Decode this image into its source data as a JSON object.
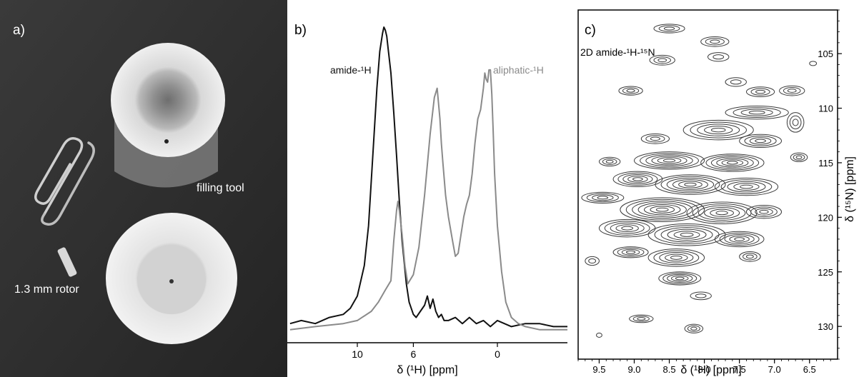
{
  "panels": {
    "a": {
      "label": "a)",
      "annotations": {
        "filling_tool": "filling tool",
        "rotor": "1.3 mm rotor"
      }
    },
    "b": {
      "label": "b)",
      "xlabel": "δ (¹H) [ppm]"
    },
    "c": {
      "label": "c)",
      "annotation": "2D amide-¹H-¹⁵N",
      "xlabel": "δ (¹H) [ppm]",
      "ylabel": "δ (¹⁵N) [ppm]"
    }
  },
  "colors": {
    "amide": "#111111",
    "aliphatic": "#8a8a8a",
    "contour": "#3a3a3a",
    "photo_bg": "#2c2c2c"
  },
  "chart_data": [
    {
      "type": "line",
      "panel": "b",
      "xlabel": "δ (¹H) [ppm]",
      "ylabel": "",
      "x_ticks": [
        10,
        6,
        0
      ],
      "xlim": [
        15,
        -5
      ],
      "x_reversed": true,
      "ylim": [
        0,
        1
      ],
      "series": [
        {
          "name": "amide-¹H",
          "x": [
            14.8,
            14,
            13,
            12,
            11,
            10.5,
            10,
            9.5,
            9.2,
            9,
            8.8,
            8.6,
            8.4,
            8.2,
            8.1,
            8,
            7.9,
            7.8,
            7.6,
            7.4,
            7.2,
            7,
            6.8,
            6.5,
            6.3,
            6,
            5.8,
            5.5,
            5.2,
            5,
            4.8,
            4.6,
            4.4,
            4.2,
            4,
            3.8,
            3.5,
            3,
            2.5,
            2,
            1.5,
            1,
            0.5,
            0,
            -1,
            -2,
            -3,
            -4,
            -5
          ],
          "y": [
            0.03,
            0.04,
            0.03,
            0.05,
            0.06,
            0.08,
            0.12,
            0.22,
            0.35,
            0.5,
            0.65,
            0.8,
            0.92,
            0.98,
            1.0,
            0.99,
            0.97,
            0.93,
            0.85,
            0.72,
            0.58,
            0.43,
            0.3,
            0.16,
            0.1,
            0.06,
            0.05,
            0.07,
            0.09,
            0.12,
            0.08,
            0.11,
            0.07,
            0.05,
            0.06,
            0.04,
            0.04,
            0.05,
            0.03,
            0.05,
            0.03,
            0.04,
            0.02,
            0.04,
            0.02,
            0.03,
            0.03,
            0.02,
            0.02
          ]
        },
        {
          "name": "aliphatic-¹H",
          "x": [
            14.8,
            13,
            11,
            10,
            9,
            8.5,
            8,
            7.6,
            7.4,
            7.2,
            7.1,
            7,
            6.8,
            6.6,
            6.4,
            6,
            5.6,
            5.2,
            5,
            4.8,
            4.5,
            4.3,
            4.1,
            4,
            3.9,
            3.7,
            3.5,
            3.2,
            3,
            2.8,
            2.6,
            2.4,
            2.2,
            2,
            1.8,
            1.6,
            1.4,
            1.2,
            1,
            0.9,
            0.8,
            0.7,
            0.6,
            0.5,
            0.4,
            0.3,
            0.2,
            0,
            -0.3,
            -0.6,
            -1,
            -1.5,
            -2,
            -3,
            -4,
            -5
          ],
          "y": [
            0.01,
            0.02,
            0.03,
            0.04,
            0.07,
            0.1,
            0.14,
            0.17,
            0.3,
            0.4,
            0.43,
            0.4,
            0.32,
            0.22,
            0.16,
            0.19,
            0.28,
            0.45,
            0.55,
            0.65,
            0.77,
            0.8,
            0.7,
            0.62,
            0.56,
            0.45,
            0.38,
            0.3,
            0.25,
            0.26,
            0.32,
            0.38,
            0.42,
            0.45,
            0.52,
            0.62,
            0.7,
            0.73,
            0.8,
            0.85,
            0.83,
            0.82,
            0.86,
            0.86,
            0.78,
            0.66,
            0.52,
            0.35,
            0.2,
            0.1,
            0.05,
            0.03,
            0.02,
            0.01,
            0.01,
            0.01
          ]
        }
      ]
    },
    {
      "type": "scatter",
      "subtype": "contour",
      "panel": "c",
      "xlabel": "δ (¹H) [ppm]",
      "ylabel": "δ (¹⁵N) [ppm]",
      "xlim": [
        9.8,
        6.1
      ],
      "x_reversed": true,
      "ylim": [
        101,
        133
      ],
      "y_reversed": true,
      "x_ticks": [
        9.5,
        9.0,
        8.5,
        8.0,
        7.5,
        7.0,
        6.5
      ],
      "y_ticks": [
        105,
        110,
        115,
        120,
        125,
        130
      ],
      "peaks": [
        {
          "x": 8.5,
          "y": 102.7,
          "rx": 0.22,
          "ry": 0.4,
          "n": 3
        },
        {
          "x": 7.85,
          "y": 103.9,
          "rx": 0.2,
          "ry": 0.45,
          "n": 3
        },
        {
          "x": 8.6,
          "y": 105.6,
          "rx": 0.18,
          "ry": 0.45,
          "n": 3
        },
        {
          "x": 7.8,
          "y": 105.3,
          "rx": 0.15,
          "ry": 0.4,
          "n": 2
        },
        {
          "x": 6.45,
          "y": 105.9,
          "rx": 0.05,
          "ry": 0.2,
          "n": 1
        },
        {
          "x": 9.05,
          "y": 108.4,
          "rx": 0.17,
          "ry": 0.4,
          "n": 3
        },
        {
          "x": 7.55,
          "y": 107.6,
          "rx": 0.15,
          "ry": 0.4,
          "n": 2
        },
        {
          "x": 7.2,
          "y": 108.5,
          "rx": 0.2,
          "ry": 0.45,
          "n": 3
        },
        {
          "x": 6.75,
          "y": 108.4,
          "rx": 0.18,
          "ry": 0.45,
          "n": 3
        },
        {
          "x": 7.25,
          "y": 110.4,
          "rx": 0.45,
          "ry": 0.6,
          "n": 4
        },
        {
          "x": 6.7,
          "y": 111.3,
          "rx": 0.12,
          "ry": 0.9,
          "n": 3
        },
        {
          "x": 8.7,
          "y": 112.8,
          "rx": 0.2,
          "ry": 0.45,
          "n": 3
        },
        {
          "x": 7.8,
          "y": 112.0,
          "rx": 0.5,
          "ry": 0.9,
          "n": 5
        },
        {
          "x": 7.2,
          "y": 113.0,
          "rx": 0.3,
          "ry": 0.6,
          "n": 4
        },
        {
          "x": 9.35,
          "y": 114.9,
          "rx": 0.15,
          "ry": 0.4,
          "n": 3
        },
        {
          "x": 8.5,
          "y": 114.8,
          "rx": 0.5,
          "ry": 0.8,
          "n": 6
        },
        {
          "x": 7.6,
          "y": 115.0,
          "rx": 0.45,
          "ry": 0.8,
          "n": 6
        },
        {
          "x": 6.65,
          "y": 114.5,
          "rx": 0.12,
          "ry": 0.4,
          "n": 3
        },
        {
          "x": 8.95,
          "y": 116.5,
          "rx": 0.35,
          "ry": 0.7,
          "n": 5
        },
        {
          "x": 8.2,
          "y": 117.0,
          "rx": 0.5,
          "ry": 0.9,
          "n": 6
        },
        {
          "x": 7.4,
          "y": 117.2,
          "rx": 0.45,
          "ry": 0.8,
          "n": 5
        },
        {
          "x": 9.45,
          "y": 118.2,
          "rx": 0.3,
          "ry": 0.5,
          "n": 4
        },
        {
          "x": 8.6,
          "y": 119.3,
          "rx": 0.6,
          "ry": 1.1,
          "n": 7
        },
        {
          "x": 7.75,
          "y": 119.6,
          "rx": 0.5,
          "ry": 1.0,
          "n": 6
        },
        {
          "x": 7.15,
          "y": 119.5,
          "rx": 0.25,
          "ry": 0.6,
          "n": 4
        },
        {
          "x": 9.1,
          "y": 121.0,
          "rx": 0.4,
          "ry": 0.8,
          "n": 5
        },
        {
          "x": 8.25,
          "y": 121.6,
          "rx": 0.55,
          "ry": 1.0,
          "n": 6
        },
        {
          "x": 7.5,
          "y": 122.0,
          "rx": 0.35,
          "ry": 0.7,
          "n": 5
        },
        {
          "x": 9.05,
          "y": 123.2,
          "rx": 0.25,
          "ry": 0.5,
          "n": 4
        },
        {
          "x": 8.4,
          "y": 123.7,
          "rx": 0.4,
          "ry": 0.8,
          "n": 5
        },
        {
          "x": 7.35,
          "y": 123.6,
          "rx": 0.15,
          "ry": 0.45,
          "n": 3
        },
        {
          "x": 9.6,
          "y": 124.0,
          "rx": 0.1,
          "ry": 0.4,
          "n": 2
        },
        {
          "x": 8.35,
          "y": 125.6,
          "rx": 0.3,
          "ry": 0.6,
          "n": 5
        },
        {
          "x": 8.05,
          "y": 127.2,
          "rx": 0.15,
          "ry": 0.35,
          "n": 2
        },
        {
          "x": 8.9,
          "y": 129.3,
          "rx": 0.17,
          "ry": 0.35,
          "n": 3
        },
        {
          "x": 8.15,
          "y": 130.2,
          "rx": 0.13,
          "ry": 0.4,
          "n": 3
        },
        {
          "x": 9.5,
          "y": 130.8,
          "rx": 0.04,
          "ry": 0.2,
          "n": 1
        }
      ]
    }
  ]
}
